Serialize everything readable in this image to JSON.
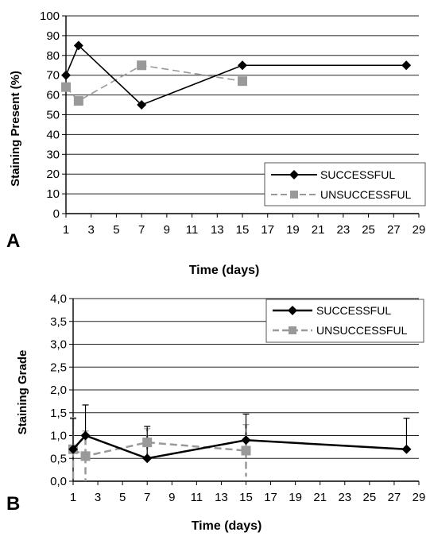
{
  "chart_data": [
    {
      "panel_label": "A",
      "type": "line",
      "xlabel": "Time (days)",
      "ylabel": "Staining Present (%)",
      "xlim": [
        1,
        29
      ],
      "ylim": [
        0,
        100
      ],
      "x_ticks": [
        "1",
        "3",
        "5",
        "7",
        "9",
        "11",
        "13",
        "15",
        "17",
        "19",
        "21",
        "23",
        "25",
        "27",
        "29"
      ],
      "y_ticks": [
        "0",
        "10",
        "20",
        "30",
        "40",
        "50",
        "60",
        "70",
        "80",
        "90",
        "100"
      ],
      "grid": "horizontal",
      "legend_position": "bottom-right",
      "series": [
        {
          "name": "SUCCESSFUL",
          "color": "#000000",
          "line_style": "solid",
          "marker": "diamond",
          "points": [
            [
              1,
              70
            ],
            [
              2,
              85
            ],
            [
              7,
              55
            ],
            [
              15,
              75
            ],
            [
              28,
              75
            ]
          ]
        },
        {
          "name": "UNSUCCESSFUL",
          "color": "#999999",
          "line_style": "dashed",
          "marker": "square",
          "points": [
            [
              1,
              64
            ],
            [
              2,
              57
            ],
            [
              7,
              75
            ],
            [
              15,
              67
            ]
          ]
        }
      ]
    },
    {
      "panel_label": "B",
      "type": "line",
      "xlabel": "Time (days)",
      "ylabel": "Staining Grade",
      "xlim": [
        1,
        29
      ],
      "ylim": [
        0,
        4
      ],
      "x_ticks": [
        "1",
        "3",
        "5",
        "7",
        "9",
        "11",
        "13",
        "15",
        "17",
        "19",
        "21",
        "23",
        "25",
        "27",
        "29"
      ],
      "y_ticks": [
        "0,0",
        "0,5",
        "1,0",
        "1,5",
        "2,0",
        "2,5",
        "3,0",
        "3,5",
        "4,0"
      ],
      "grid": "horizontal",
      "legend_position": "top-right",
      "series": [
        {
          "name": "SUCCESSFUL",
          "color": "#000000",
          "line_style": "solid",
          "marker": "diamond",
          "points": [
            [
              1,
              0.7,
              0.67
            ],
            [
              2,
              1.0,
              0.67
            ],
            [
              7,
              0.5,
              0.7
            ],
            [
              15,
              0.9,
              0.57
            ],
            [
              28,
              0.7,
              0.68
            ]
          ]
        },
        {
          "name": "UNSUCCESSFUL",
          "color": "#999999",
          "line_style": "dashed",
          "marker": "square",
          "points": [
            [
              1,
              0.7,
              0.7
            ],
            [
              2,
              0.55,
              0.55
            ],
            [
              7,
              0.85,
              0.3
            ],
            [
              15,
              0.67,
              0.57
            ]
          ]
        }
      ]
    }
  ]
}
